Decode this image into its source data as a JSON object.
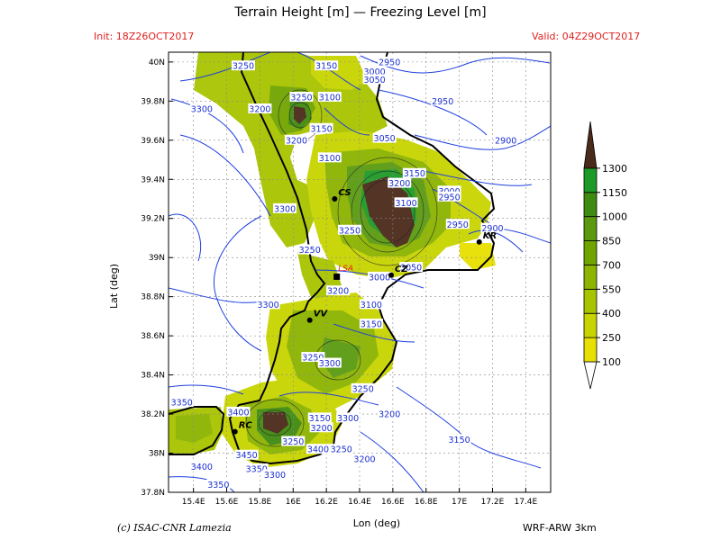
{
  "header": {
    "title": "Terrain Height [m] — Freezing Level [m]",
    "init": "Init: 18Z26OCT2017",
    "valid": "Valid: 04Z29OCT2017"
  },
  "footer": {
    "credit": "(c) ISAC-CNR Lamezia",
    "model": "WRF-ARW 3km"
  },
  "axes": {
    "xlabel": "Lon (deg)",
    "ylabel": "Lat (deg)",
    "xlim": [
      15.25,
      17.55
    ],
    "ylim": [
      37.8,
      40.05
    ],
    "xticks": [
      {
        "v": 15.4,
        "t": "15.4E"
      },
      {
        "v": 15.6,
        "t": "15.6E"
      },
      {
        "v": 15.8,
        "t": "15.8E"
      },
      {
        "v": 16.0,
        "t": "16E"
      },
      {
        "v": 16.2,
        "t": "16.2E"
      },
      {
        "v": 16.4,
        "t": "16.4E"
      },
      {
        "v": 16.6,
        "t": "16.6E"
      },
      {
        "v": 16.8,
        "t": "16.8E"
      },
      {
        "v": 17.0,
        "t": "17E"
      },
      {
        "v": 17.2,
        "t": "17.2E"
      },
      {
        "v": 17.4,
        "t": "17.4E"
      }
    ],
    "yticks": [
      {
        "v": 37.8,
        "t": "37.8N"
      },
      {
        "v": 38.0,
        "t": "38N"
      },
      {
        "v": 38.2,
        "t": "38.2N"
      },
      {
        "v": 38.4,
        "t": "38.4N"
      },
      {
        "v": 38.6,
        "t": "38.6N"
      },
      {
        "v": 38.8,
        "t": "38.8N"
      },
      {
        "v": 39.0,
        "t": "39N"
      },
      {
        "v": 39.2,
        "t": "39.2N"
      },
      {
        "v": 39.4,
        "t": "39.4N"
      },
      {
        "v": 39.6,
        "t": "39.6N"
      },
      {
        "v": 39.8,
        "t": "39.8N"
      },
      {
        "v": 40.0,
        "t": "40N"
      }
    ],
    "grid": true
  },
  "colorbar": {
    "levels": [
      "100",
      "250",
      "400",
      "550",
      "700",
      "850",
      "1000",
      "1150",
      "1300"
    ],
    "colors": [
      "#e8e000",
      "#c8d400",
      "#a8c400",
      "#8cb400",
      "#70a400",
      "#5a9a10",
      "#3f8a10",
      "#1e9a28",
      "#4a2a1a"
    ],
    "extend": "both"
  },
  "cities": [
    {
      "code": "CS",
      "lon": 16.25,
      "lat": 39.3
    },
    {
      "code": "KR",
      "lon": 17.12,
      "lat": 39.08
    },
    {
      "code": "CZ",
      "lon": 16.59,
      "lat": 38.91
    },
    {
      "code": "VV",
      "lon": 16.1,
      "lat": 38.68
    },
    {
      "code": "RC",
      "lon": 15.65,
      "lat": 38.11
    },
    {
      "code": "LSA",
      "lon": 16.26,
      "lat": 38.9
    }
  ],
  "contour_labels": [
    {
      "t": "3250",
      "lon": 15.7,
      "lat": 39.98
    },
    {
      "t": "3150",
      "lon": 16.2,
      "lat": 39.98
    },
    {
      "t": "2950",
      "lon": 16.58,
      "lat": 40.0
    },
    {
      "t": "3000",
      "lon": 16.49,
      "lat": 39.95
    },
    {
      "t": "3050",
      "lon": 16.49,
      "lat": 39.91
    },
    {
      "t": "3300",
      "lon": 15.45,
      "lat": 39.76
    },
    {
      "t": "3250",
      "lon": 16.05,
      "lat": 39.82
    },
    {
      "t": "3100",
      "lon": 16.22,
      "lat": 39.82
    },
    {
      "t": "3200",
      "lon": 15.8,
      "lat": 39.76
    },
    {
      "t": "2950",
      "lon": 16.9,
      "lat": 39.8
    },
    {
      "t": "3150",
      "lon": 16.17,
      "lat": 39.66
    },
    {
      "t": "3200",
      "lon": 16.02,
      "lat": 39.6
    },
    {
      "t": "3050",
      "lon": 16.55,
      "lat": 39.61
    },
    {
      "t": "2900",
      "lon": 17.28,
      "lat": 39.6
    },
    {
      "t": "3100",
      "lon": 16.22,
      "lat": 39.51
    },
    {
      "t": "3150",
      "lon": 16.73,
      "lat": 39.43
    },
    {
      "t": "3200",
      "lon": 16.64,
      "lat": 39.38
    },
    {
      "t": "3000",
      "lon": 16.94,
      "lat": 39.34
    },
    {
      "t": "2950",
      "lon": 16.94,
      "lat": 39.31
    },
    {
      "t": "3100",
      "lon": 16.68,
      "lat": 39.28
    },
    {
      "t": "3300",
      "lon": 15.95,
      "lat": 39.25
    },
    {
      "t": "3250",
      "lon": 16.34,
      "lat": 39.14
    },
    {
      "t": "2950",
      "lon": 16.99,
      "lat": 39.17
    },
    {
      "t": "2900",
      "lon": 17.2,
      "lat": 39.15
    },
    {
      "t": "3250",
      "lon": 16.1,
      "lat": 39.04
    },
    {
      "t": "3050",
      "lon": 16.71,
      "lat": 38.95
    },
    {
      "t": "3000",
      "lon": 16.52,
      "lat": 38.9
    },
    {
      "t": "3200",
      "lon": 16.27,
      "lat": 38.83
    },
    {
      "t": "3100",
      "lon": 16.47,
      "lat": 38.76
    },
    {
      "t": "3300",
      "lon": 15.85,
      "lat": 38.76
    },
    {
      "t": "3150",
      "lon": 16.47,
      "lat": 38.66
    },
    {
      "t": "3250",
      "lon": 16.12,
      "lat": 38.49
    },
    {
      "t": "3300",
      "lon": 16.22,
      "lat": 38.46
    },
    {
      "t": "3250",
      "lon": 16.42,
      "lat": 38.33
    },
    {
      "t": "3200",
      "lon": 16.58,
      "lat": 38.2
    },
    {
      "t": "3350",
      "lon": 15.33,
      "lat": 38.26
    },
    {
      "t": "3400",
      "lon": 15.67,
      "lat": 38.21
    },
    {
      "t": "3150",
      "lon": 16.16,
      "lat": 38.18
    },
    {
      "t": "3300",
      "lon": 16.33,
      "lat": 38.18
    },
    {
      "t": "3200",
      "lon": 16.17,
      "lat": 38.13
    },
    {
      "t": "3250",
      "lon": 16.0,
      "lat": 38.06
    },
    {
      "t": "3150",
      "lon": 17.0,
      "lat": 38.07
    },
    {
      "t": "3450",
      "lon": 15.72,
      "lat": 37.99
    },
    {
      "t": "3400",
      "lon": 16.15,
      "lat": 38.02
    },
    {
      "t": "3250",
      "lon": 16.29,
      "lat": 38.02
    },
    {
      "t": "3200",
      "lon": 16.43,
      "lat": 37.97
    },
    {
      "t": "3400",
      "lon": 15.45,
      "lat": 37.93
    },
    {
      "t": "3350",
      "lon": 15.78,
      "lat": 37.92
    },
    {
      "t": "3300",
      "lon": 15.89,
      "lat": 37.89
    },
    {
      "t": "3350",
      "lon": 15.55,
      "lat": 37.84
    }
  ]
}
